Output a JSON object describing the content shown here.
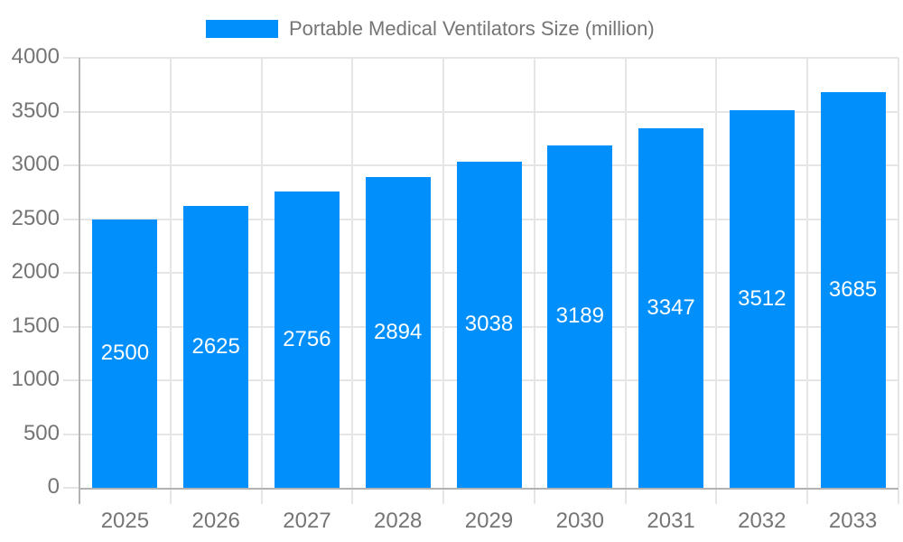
{
  "legend": {
    "label": "Portable Medical Ventilators Size (million)"
  },
  "chart_data": {
    "type": "bar",
    "title": "Portable Medical Ventilators Size (million)",
    "series_name": "Portable Medical Ventilators Size (million)",
    "categories": [
      "2025",
      "2026",
      "2027",
      "2028",
      "2029",
      "2030",
      "2031",
      "2032",
      "2033"
    ],
    "values": [
      2500,
      2625,
      2756,
      2894,
      3038,
      3189,
      3347,
      3512,
      3685
    ],
    "xlabel": "",
    "ylabel": "",
    "ylim": [
      0,
      4000
    ],
    "ytick_step": 500,
    "yticks": [
      0,
      500,
      1000,
      1500,
      2000,
      2500,
      3000,
      3500,
      4000
    ],
    "grid": true,
    "legend_position": "top",
    "bar_color": "#008FFB",
    "value_label_color": "#ffffff",
    "axis_text_color": "#757575",
    "gridline_color": "#e5e5e5",
    "axis_line_color": "#b2b2b2"
  }
}
